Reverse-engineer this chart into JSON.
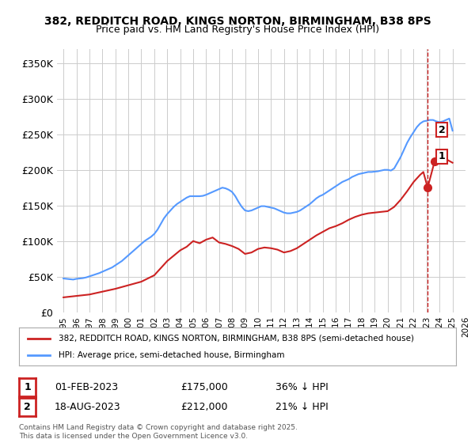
{
  "title_line1": "382, REDDITCH ROAD, KINGS NORTON, BIRMINGHAM, B38 8PS",
  "title_line2": "Price paid vs. HM Land Registry's House Price Index (HPI)",
  "ylabel": "",
  "xlabel": "",
  "ylim": [
    0,
    370000
  ],
  "yticks": [
    0,
    50000,
    100000,
    150000,
    200000,
    250000,
    300000,
    350000
  ],
  "ytick_labels": [
    "£0",
    "£50K",
    "£100K",
    "£150K",
    "£200K",
    "£250K",
    "£300K",
    "£350K"
  ],
  "hpi_color": "#5599ff",
  "price_color": "#cc2222",
  "dashed_color": "#cc2222",
  "background_color": "#ffffff",
  "grid_color": "#cccccc",
  "legend_label_red": "382, REDDITCH ROAD, KINGS NORTON, BIRMINGHAM, B38 8PS (semi-detached house)",
  "legend_label_blue": "HPI: Average price, semi-detached house, Birmingham",
  "annotation_footnote": "Contains HM Land Registry data © Crown copyright and database right 2025.\nThis data is licensed under the Open Government Licence v3.0.",
  "sale1_label": "1",
  "sale1_date": "01-FEB-2023",
  "sale1_price": "£175,000",
  "sale1_hpi": "36% ↓ HPI",
  "sale2_label": "2",
  "sale2_date": "18-AUG-2023",
  "sale2_price": "£212,000",
  "sale2_hpi": "21% ↓ HPI",
  "marker1_x": 2023.08,
  "marker1_y": 175000,
  "marker2_x": 2023.62,
  "marker2_y": 212000,
  "vline_x": 2023.08,
  "hpi_data": [
    [
      1995.0,
      47500
    ],
    [
      1995.25,
      47000
    ],
    [
      1995.5,
      46500
    ],
    [
      1995.75,
      46000
    ],
    [
      1996.0,
      47000
    ],
    [
      1996.25,
      47500
    ],
    [
      1996.5,
      48000
    ],
    [
      1996.75,
      49000
    ],
    [
      1997.0,
      50500
    ],
    [
      1997.25,
      52000
    ],
    [
      1997.5,
      53500
    ],
    [
      1997.75,
      55000
    ],
    [
      1998.0,
      57000
    ],
    [
      1998.25,
      59000
    ],
    [
      1998.5,
      61000
    ],
    [
      1998.75,
      63000
    ],
    [
      1999.0,
      66000
    ],
    [
      1999.25,
      69000
    ],
    [
      1999.5,
      72000
    ],
    [
      1999.75,
      76000
    ],
    [
      2000.0,
      80000
    ],
    [
      2000.25,
      84000
    ],
    [
      2000.5,
      88000
    ],
    [
      2000.75,
      92000
    ],
    [
      2001.0,
      96000
    ],
    [
      2001.25,
      100000
    ],
    [
      2001.5,
      103000
    ],
    [
      2001.75,
      106000
    ],
    [
      2002.0,
      110000
    ],
    [
      2002.25,
      116000
    ],
    [
      2002.5,
      124000
    ],
    [
      2002.75,
      132000
    ],
    [
      2003.0,
      138000
    ],
    [
      2003.25,
      143000
    ],
    [
      2003.5,
      148000
    ],
    [
      2003.75,
      152000
    ],
    [
      2004.0,
      155000
    ],
    [
      2004.25,
      158000
    ],
    [
      2004.5,
      161000
    ],
    [
      2004.75,
      163000
    ],
    [
      2005.0,
      163000
    ],
    [
      2005.25,
      163000
    ],
    [
      2005.5,
      163000
    ],
    [
      2005.75,
      163500
    ],
    [
      2006.0,
      165000
    ],
    [
      2006.25,
      167000
    ],
    [
      2006.5,
      169000
    ],
    [
      2006.75,
      171000
    ],
    [
      2007.0,
      173000
    ],
    [
      2007.25,
      175000
    ],
    [
      2007.5,
      174000
    ],
    [
      2007.75,
      172000
    ],
    [
      2008.0,
      169000
    ],
    [
      2008.25,
      163000
    ],
    [
      2008.5,
      155000
    ],
    [
      2008.75,
      148000
    ],
    [
      2009.0,
      143000
    ],
    [
      2009.25,
      142000
    ],
    [
      2009.5,
      143000
    ],
    [
      2009.75,
      145000
    ],
    [
      2010.0,
      147000
    ],
    [
      2010.25,
      149000
    ],
    [
      2010.5,
      149000
    ],
    [
      2010.75,
      148000
    ],
    [
      2011.0,
      147000
    ],
    [
      2011.25,
      146000
    ],
    [
      2011.5,
      144000
    ],
    [
      2011.75,
      142000
    ],
    [
      2012.0,
      140000
    ],
    [
      2012.25,
      139000
    ],
    [
      2012.5,
      139000
    ],
    [
      2012.75,
      140000
    ],
    [
      2013.0,
      141000
    ],
    [
      2013.25,
      143000
    ],
    [
      2013.5,
      146000
    ],
    [
      2013.75,
      149000
    ],
    [
      2014.0,
      152000
    ],
    [
      2014.25,
      156000
    ],
    [
      2014.5,
      160000
    ],
    [
      2014.75,
      163000
    ],
    [
      2015.0,
      165000
    ],
    [
      2015.25,
      168000
    ],
    [
      2015.5,
      171000
    ],
    [
      2015.75,
      174000
    ],
    [
      2016.0,
      177000
    ],
    [
      2016.25,
      180000
    ],
    [
      2016.5,
      183000
    ],
    [
      2016.75,
      185000
    ],
    [
      2017.0,
      187000
    ],
    [
      2017.25,
      190000
    ],
    [
      2017.5,
      192000
    ],
    [
      2017.75,
      194000
    ],
    [
      2018.0,
      195000
    ],
    [
      2018.25,
      196000
    ],
    [
      2018.5,
      197000
    ],
    [
      2018.75,
      197000
    ],
    [
      2019.0,
      197500
    ],
    [
      2019.25,
      198000
    ],
    [
      2019.5,
      199000
    ],
    [
      2019.75,
      200000
    ],
    [
      2020.0,
      200000
    ],
    [
      2020.25,
      199000
    ],
    [
      2020.5,
      202000
    ],
    [
      2020.75,
      210000
    ],
    [
      2021.0,
      218000
    ],
    [
      2021.25,
      228000
    ],
    [
      2021.5,
      238000
    ],
    [
      2021.75,
      246000
    ],
    [
      2022.0,
      253000
    ],
    [
      2022.25,
      260000
    ],
    [
      2022.5,
      265000
    ],
    [
      2022.75,
      268000
    ],
    [
      2023.0,
      269000
    ],
    [
      2023.25,
      270000
    ],
    [
      2023.5,
      270000
    ],
    [
      2023.75,
      268000
    ],
    [
      2024.0,
      267000
    ],
    [
      2024.25,
      268000
    ],
    [
      2024.5,
      270000
    ],
    [
      2024.75,
      272000
    ],
    [
      2025.0,
      255000
    ]
  ],
  "price_data": [
    [
      1995.0,
      21000
    ],
    [
      1996.0,
      23000
    ],
    [
      1997.0,
      25000
    ],
    [
      1998.0,
      29000
    ],
    [
      1999.0,
      33000
    ],
    [
      2000.0,
      38000
    ],
    [
      2001.0,
      43000
    ],
    [
      2002.0,
      52000
    ],
    [
      2003.0,
      72000
    ],
    [
      2004.0,
      87000
    ],
    [
      2004.5,
      92000
    ],
    [
      2005.0,
      100000
    ],
    [
      2005.5,
      97000
    ],
    [
      2006.0,
      102000
    ],
    [
      2006.5,
      105000
    ],
    [
      2007.0,
      98000
    ],
    [
      2007.5,
      96000
    ],
    [
      2008.0,
      93000
    ],
    [
      2008.5,
      89000
    ],
    [
      2009.0,
      82000
    ],
    [
      2009.5,
      84000
    ],
    [
      2010.0,
      89000
    ],
    [
      2010.5,
      91000
    ],
    [
      2011.0,
      90000
    ],
    [
      2011.5,
      88000
    ],
    [
      2012.0,
      84000
    ],
    [
      2012.5,
      86000
    ],
    [
      2013.0,
      90000
    ],
    [
      2013.5,
      96000
    ],
    [
      2014.0,
      102000
    ],
    [
      2014.5,
      108000
    ],
    [
      2015.0,
      113000
    ],
    [
      2015.5,
      118000
    ],
    [
      2016.0,
      121000
    ],
    [
      2016.5,
      125000
    ],
    [
      2017.0,
      130000
    ],
    [
      2017.5,
      134000
    ],
    [
      2018.0,
      137000
    ],
    [
      2018.5,
      139000
    ],
    [
      2019.0,
      140000
    ],
    [
      2019.5,
      141000
    ],
    [
      2020.0,
      142000
    ],
    [
      2020.5,
      148000
    ],
    [
      2021.0,
      158000
    ],
    [
      2021.5,
      170000
    ],
    [
      2022.0,
      183000
    ],
    [
      2022.5,
      193000
    ],
    [
      2022.75,
      197000
    ],
    [
      2023.08,
      175000
    ],
    [
      2023.62,
      212000
    ],
    [
      2024.0,
      220000
    ],
    [
      2024.5,
      215000
    ],
    [
      2025.0,
      210000
    ]
  ],
  "xmin": 1994.5,
  "xmax": 2026.0,
  "xticks": [
    1995,
    1996,
    1997,
    1998,
    1999,
    2000,
    2001,
    2002,
    2003,
    2004,
    2005,
    2006,
    2007,
    2008,
    2009,
    2010,
    2011,
    2012,
    2013,
    2014,
    2015,
    2016,
    2017,
    2018,
    2019,
    2020,
    2021,
    2022,
    2023,
    2024,
    2025,
    2026
  ]
}
